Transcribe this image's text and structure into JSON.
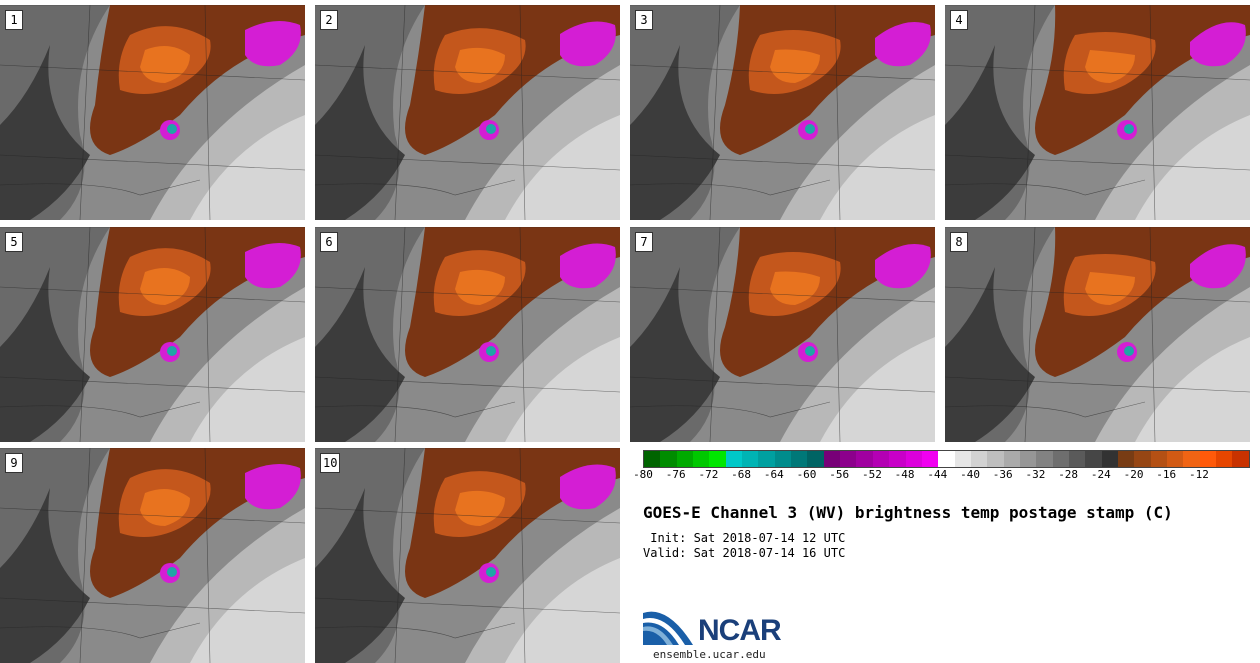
{
  "panels": [
    {
      "label": "1"
    },
    {
      "label": "2"
    },
    {
      "label": "3"
    },
    {
      "label": "4"
    },
    {
      "label": "5"
    },
    {
      "label": "6"
    },
    {
      "label": "7"
    },
    {
      "label": "8"
    },
    {
      "label": "9"
    },
    {
      "label": "10"
    }
  ],
  "colorbar": {
    "colors": [
      "#006400",
      "#008c00",
      "#00aa00",
      "#00c800",
      "#00e600",
      "#00c8c8",
      "#00b4b4",
      "#00a0a0",
      "#008c8c",
      "#007878",
      "#006464",
      "#780078",
      "#8c008c",
      "#a000a0",
      "#b400b4",
      "#c800c8",
      "#dc00dc",
      "#f000f0",
      "#ffffff",
      "#e6e6e6",
      "#d2d2d2",
      "#bebebe",
      "#aaaaaa",
      "#969696",
      "#828282",
      "#6e6e6e",
      "#5a5a5a",
      "#464646",
      "#323232",
      "#783c14",
      "#964614",
      "#b45014",
      "#d25a14",
      "#f06414",
      "#ff5a0a",
      "#e64600",
      "#c83200"
    ],
    "tick_labels": [
      "-80",
      "-76",
      "-72",
      "-68",
      "-64",
      "-60",
      "-56",
      "-52",
      "-48",
      "-44",
      "-40",
      "-36",
      "-32",
      "-28",
      "-24",
      "-20",
      "-16",
      "-12"
    ]
  },
  "title": "GOES-E Channel 3 (WV) brightness temp postage stamp (C)",
  "init": " Init: Sat 2018-07-14 12 UTC",
  "valid": "Valid: Sat 2018-07-14 16 UTC",
  "logo": {
    "text": "NCAR",
    "url": "ensemble.ucar.edu"
  },
  "colors": {
    "dark_orange": "#7a3514",
    "orange": "#c4571c",
    "bright_orange": "#e8731f",
    "magenta": "#d41ed4",
    "cyan": "#1fa6a6",
    "dark_gray": "#3c3c3c",
    "light_gray": "#d6d6d6"
  }
}
